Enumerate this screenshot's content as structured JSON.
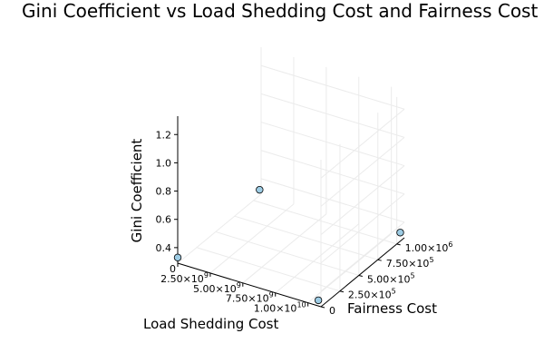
{
  "chart_data": {
    "type": "scatter",
    "title": "Gini Coefficient vs Load Shedding Cost and Fairness Cost",
    "xlabel": "Load Shedding Cost",
    "ylabel": "Fairness Cost",
    "zlabel": "Gini Coefficient",
    "x_ticks": [
      {
        "value": 0,
        "mantissa": "0",
        "exponent": ""
      },
      {
        "value": 2500000000,
        "mantissa": "2.50×10",
        "exponent": "9"
      },
      {
        "value": 5000000000,
        "mantissa": "5.00×10",
        "exponent": "9"
      },
      {
        "value": 7500000000,
        "mantissa": "7.50×10",
        "exponent": "9"
      },
      {
        "value": 10000000000,
        "mantissa": "1.00×10",
        "exponent": "10"
      }
    ],
    "y_ticks": [
      {
        "value": 0,
        "mantissa": "0",
        "exponent": ""
      },
      {
        "value": 250000,
        "mantissa": "2.50×10",
        "exponent": "5"
      },
      {
        "value": 500000,
        "mantissa": "5.00×10",
        "exponent": "5"
      },
      {
        "value": 750000,
        "mantissa": "7.50×10",
        "exponent": "5"
      },
      {
        "value": 1000000,
        "mantissa": "1.00×10",
        "exponent": "6"
      }
    ],
    "z_ticks": [
      "0.4",
      "0.6",
      "0.8",
      "1.0",
      "1.2"
    ],
    "z_tick_values": [
      0.4,
      0.6,
      0.8,
      1.0,
      1.2
    ],
    "xlim": [
      0,
      11000000000
    ],
    "ylim": [
      0,
      1100000
    ],
    "zlim": [
      0.29,
      1.33
    ],
    "grid": true,
    "legend": "none",
    "marker_color": "#9dcce4",
    "points": [
      {
        "x": 0,
        "y": 0,
        "z": 0.33
      },
      {
        "x": 10800000000,
        "y": 0,
        "z": 0.33
      },
      {
        "x": 0,
        "y": 1080000,
        "z": 0.33
      },
      {
        "x": 10800000000,
        "y": 1080000,
        "z": 0.33
      }
    ]
  }
}
